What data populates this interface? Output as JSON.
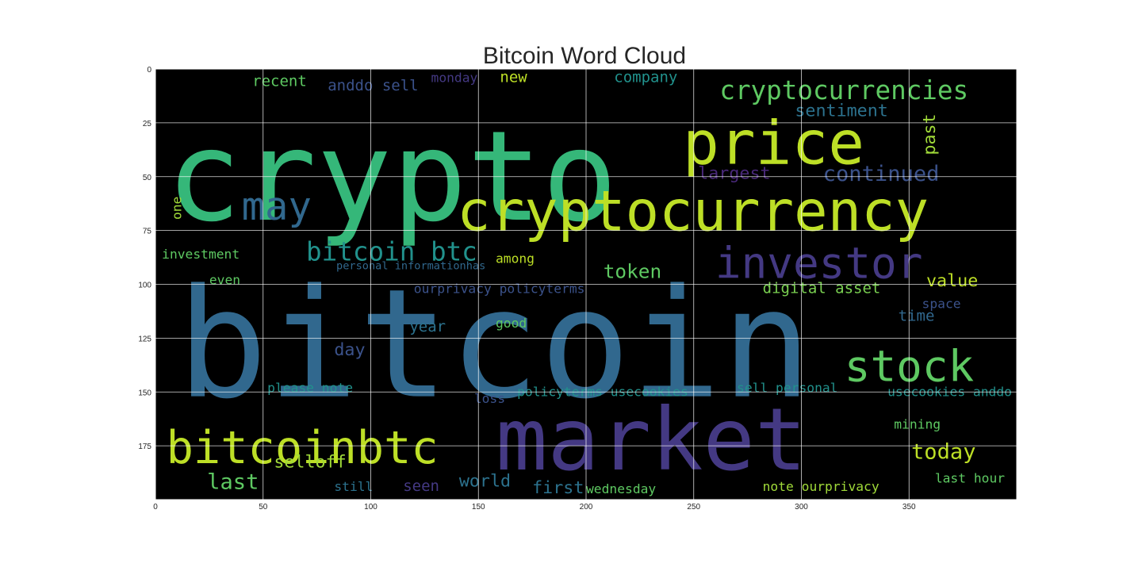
{
  "chart_data": {
    "type": "wordcloud",
    "title": "Bitcoin Word Cloud",
    "xlim": [
      0,
      400
    ],
    "ylim": [
      200,
      0
    ],
    "xticks": [
      0,
      50,
      100,
      150,
      200,
      250,
      300,
      350
    ],
    "yticks": [
      0,
      25,
      50,
      75,
      100,
      125,
      150,
      175
    ],
    "grid": true,
    "background": "#000000",
    "words": [
      {
        "text": "crypto",
        "x": 5,
        "y": 70,
        "size": 58,
        "color": "#35b779"
      },
      {
        "text": "bitcoin",
        "x": 10,
        "y": 152,
        "size": 70,
        "color": "#31688e"
      },
      {
        "text": "market",
        "x": 158,
        "y": 186,
        "size": 40,
        "color": "#443983"
      },
      {
        "text": "cryptocurrency",
        "x": 140,
        "y": 75,
        "size": 26,
        "color": "#bddf26"
      },
      {
        "text": "price",
        "x": 245,
        "y": 44,
        "size": 28,
        "color": "#bddf26"
      },
      {
        "text": "bitcoinbtc",
        "x": 5,
        "y": 183,
        "size": 21,
        "color": "#bddf26"
      },
      {
        "text": "investor",
        "x": 260,
        "y": 97,
        "size": 20,
        "color": "#443983"
      },
      {
        "text": "stock",
        "x": 320,
        "y": 145,
        "size": 20,
        "color": "#5ec962"
      },
      {
        "text": "cryptocurrencies",
        "x": 262,
        "y": 14,
        "size": 12,
        "color": "#5ec962"
      },
      {
        "text": "may",
        "x": 40,
        "y": 70,
        "size": 18,
        "color": "#31688e"
      },
      {
        "text": "bitcoin btc",
        "x": 70,
        "y": 89,
        "size": 12,
        "color": "#21918c"
      },
      {
        "text": "continued",
        "x": 310,
        "y": 52,
        "size": 10,
        "color": "#3b528b"
      },
      {
        "text": "sentiment",
        "x": 297,
        "y": 22,
        "size": 8,
        "color": "#2c728e"
      },
      {
        "text": "largest",
        "x": 252,
        "y": 51,
        "size": 8,
        "color": "#482878"
      },
      {
        "text": "past",
        "x": 362,
        "y": 40,
        "size": 8,
        "color": "#a0da39",
        "rotate": -90
      },
      {
        "text": "value",
        "x": 358,
        "y": 101,
        "size": 8,
        "color": "#bddf26"
      },
      {
        "text": "digital asset",
        "x": 282,
        "y": 104,
        "size": 7,
        "color": "#7ad151"
      },
      {
        "text": "token",
        "x": 208,
        "y": 97,
        "size": 9,
        "color": "#5ec962"
      },
      {
        "text": "today",
        "x": 351,
        "y": 181,
        "size": 10,
        "color": "#bddf26"
      },
      {
        "text": "selloff",
        "x": 55,
        "y": 185,
        "size": 8,
        "color": "#a0da39"
      },
      {
        "text": "last",
        "x": 24,
        "y": 195,
        "size": 10,
        "color": "#5ec962"
      },
      {
        "text": "world",
        "x": 141,
        "y": 194,
        "size": 8,
        "color": "#2c728e"
      },
      {
        "text": "first",
        "x": 175,
        "y": 197,
        "size": 8,
        "color": "#2c728e"
      },
      {
        "text": "new",
        "x": 160,
        "y": 6,
        "size": 7,
        "color": "#bddf26"
      },
      {
        "text": "company",
        "x": 213,
        "y": 6,
        "size": 7,
        "color": "#21918c"
      },
      {
        "text": "recent",
        "x": 45,
        "y": 8,
        "size": 7,
        "color": "#5ec962"
      },
      {
        "text": "anddo sell",
        "x": 80,
        "y": 10,
        "size": 7,
        "color": "#3b528b"
      },
      {
        "text": "monday",
        "x": 128,
        "y": 6,
        "size": 6,
        "color": "#443983"
      },
      {
        "text": "investment",
        "x": 3,
        "y": 88,
        "size": 6,
        "color": "#5ec962"
      },
      {
        "text": "even",
        "x": 25,
        "y": 100,
        "size": 6,
        "color": "#5ec962"
      },
      {
        "text": "among",
        "x": 158,
        "y": 90,
        "size": 6,
        "color": "#bddf26"
      },
      {
        "text": "year",
        "x": 118,
        "y": 122,
        "size": 7,
        "color": "#2c728e"
      },
      {
        "text": "good",
        "x": 158,
        "y": 120,
        "size": 6,
        "color": "#5ec962"
      },
      {
        "text": "day",
        "x": 83,
        "y": 133,
        "size": 8,
        "color": "#3b528b"
      },
      {
        "text": "time",
        "x": 345,
        "y": 117,
        "size": 7,
        "color": "#31688e"
      },
      {
        "text": "space",
        "x": 356,
        "y": 111,
        "size": 6,
        "color": "#3b528b"
      },
      {
        "text": "please note",
        "x": 52,
        "y": 150,
        "size": 6,
        "color": "#21918c"
      },
      {
        "text": "loss",
        "x": 148,
        "y": 155,
        "size": 6,
        "color": "#3b528b"
      },
      {
        "text": "policyterms usecookies",
        "x": 168,
        "y": 152,
        "size": 6,
        "color": "#21918c"
      },
      {
        "text": "sell personal",
        "x": 270,
        "y": 150,
        "size": 6,
        "color": "#21918c"
      },
      {
        "text": "usecookies anddo",
        "x": 340,
        "y": 152,
        "size": 6,
        "color": "#21918c"
      },
      {
        "text": "mining",
        "x": 343,
        "y": 167,
        "size": 6,
        "color": "#5ec962"
      },
      {
        "text": "still",
        "x": 83,
        "y": 196,
        "size": 6,
        "color": "#2c728e"
      },
      {
        "text": "seen",
        "x": 115,
        "y": 196,
        "size": 7,
        "color": "#443983"
      },
      {
        "text": "wednesday",
        "x": 200,
        "y": 197,
        "size": 6,
        "color": "#5ec962"
      },
      {
        "text": "note ourprivacy",
        "x": 282,
        "y": 196,
        "size": 6,
        "color": "#a0da39"
      },
      {
        "text": "last hour",
        "x": 362,
        "y": 192,
        "size": 6,
        "color": "#5ec962"
      },
      {
        "text": "one",
        "x": 12,
        "y": 70,
        "size": 6,
        "color": "#a0da39",
        "rotate": -90
      },
      {
        "text": "ourprivacy policyterms",
        "x": 120,
        "y": 104,
        "size": 6,
        "color": "#3b528b"
      },
      {
        "text": "personal informationhas",
        "x": 84,
        "y": 93,
        "size": 5,
        "color": "#31688e"
      }
    ]
  }
}
